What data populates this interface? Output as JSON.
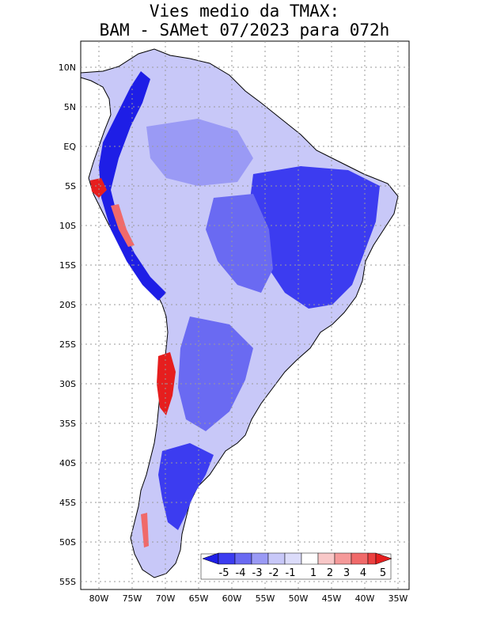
{
  "title": {
    "line1": "Vies medio da TMAX:",
    "line2": "BAM - SAMet 07/2023  para 072h"
  },
  "axes": {
    "lat_labels": [
      "10N",
      "5N",
      "EQ",
      "5S",
      "10S",
      "15S",
      "20S",
      "25S",
      "30S",
      "35S",
      "40S",
      "45S",
      "50S",
      "55S"
    ],
    "lon_labels": [
      "80W",
      "75W",
      "70W",
      "65W",
      "60W",
      "55W",
      "50W",
      "45W",
      "40W",
      "35W"
    ]
  },
  "colorbar": {
    "labels": [
      "-5",
      "-4",
      "-3",
      "-2",
      "-1",
      "1",
      "2",
      "3",
      "4",
      "5"
    ],
    "colors": [
      "#1e1ee6",
      "#3c3cf0",
      "#6a6af2",
      "#9a9af5",
      "#c8c8f8",
      "#ffffff",
      "#f8c8c8",
      "#f59a9a",
      "#f06a6a",
      "#e61e1e"
    ]
  },
  "colors": {
    "frame": "#000000",
    "grid": "#9a9a9a",
    "ocean": "#ffffff",
    "coast": "#000000"
  }
}
